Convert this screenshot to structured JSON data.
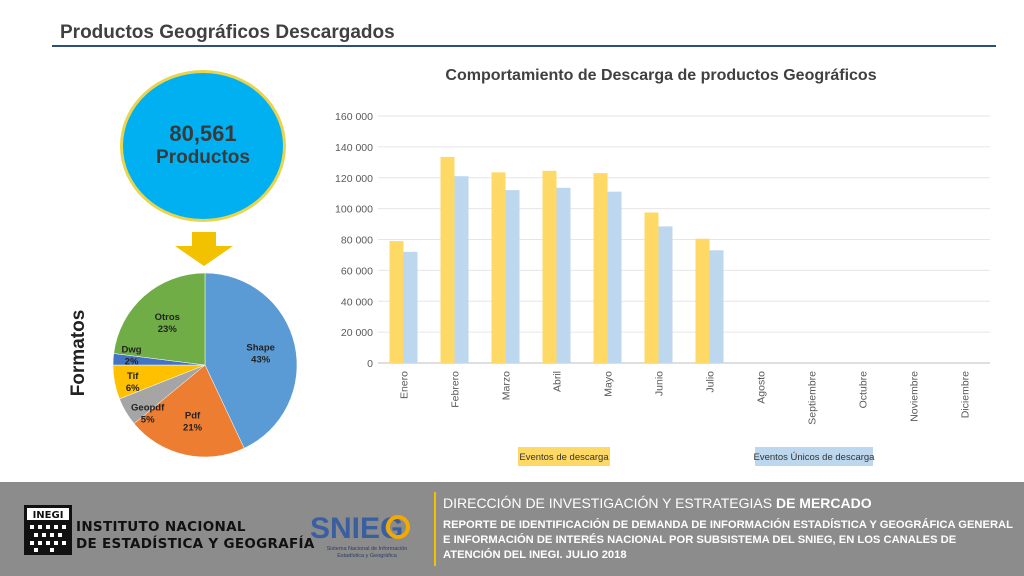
{
  "header": {
    "title": "Productos Geográficos Descargados"
  },
  "summary": {
    "number": "80,561",
    "label": "Productos",
    "side_label": "Formatos"
  },
  "pie": {
    "slices": [
      {
        "name": "Shape",
        "pct_label": "43%",
        "value": 43,
        "color": "#5b9bd5"
      },
      {
        "name": "Pdf",
        "pct_label": "21%",
        "value": 21,
        "color": "#ed7d31"
      },
      {
        "name": "Geopdf",
        "pct_label": "5%",
        "value": 5,
        "color": "#a5a5a5"
      },
      {
        "name": "Tif",
        "pct_label": "6%",
        "value": 6,
        "color": "#ffc000"
      },
      {
        "name": "Dwg",
        "pct_label": "2%",
        "value": 2,
        "color": "#4472c4"
      },
      {
        "name": "Otros",
        "pct_label": "23%",
        "value": 23,
        "color": "#70ad47"
      }
    ]
  },
  "chart_data": {
    "type": "bar",
    "title": "Comportamiento de Descarga de productos Geográficos",
    "categories": [
      "Enero",
      "Febrero",
      "Marzo",
      "Abril",
      "Mayo",
      "Junio",
      "Julio",
      "Agosto",
      "Septiembre",
      "Octubre",
      "Noviembre",
      "Diciembre"
    ],
    "series": [
      {
        "name": "Eventos de descarga",
        "color": "#ffd966",
        "values": [
          79000,
          133500,
          123500,
          124500,
          123000,
          97500,
          80500,
          null,
          null,
          null,
          null,
          null
        ]
      },
      {
        "name": "Eventos Únicos de descarga",
        "color": "#bdd7ee",
        "values": [
          72000,
          121000,
          112000,
          113500,
          111000,
          88500,
          73000,
          null,
          null,
          null,
          null,
          null
        ]
      }
    ],
    "yticks": [
      "0",
      "20 000",
      "40 000",
      "60 000",
      "80 000",
      "100 000",
      "120 000",
      "140 000",
      "160 000"
    ],
    "ylim": [
      0,
      160000
    ],
    "grid": true,
    "legend_position": "bottom"
  },
  "footer": {
    "inegi_logo_text": "INEGI",
    "institute_line1": "INSTITUTO NACIONAL",
    "institute_line2": "DE ESTADÍSTICA Y GEOGRAFÍA",
    "snieg_brand": "SNIEG",
    "snieg_line1": "Sistema Nacional de Información",
    "snieg_line2": "Estadística y Geográfica",
    "heading_normal": "DIRECCIÓN DE INVESTIGACIÓN Y ESTRATEGIAS",
    "heading_bold": "DE MERCADO",
    "report": "REPORTE DE IDENTIFICACIÓN DE DEMANDA DE INFORMACIÓN ESTADÍSTICA Y GEOGRÁFICA GENERAL E INFORMACIÓN DE INTERÉS NACIONAL POR SUBSISTEMA DEL SNIEG, EN LOS CANALES DE ATENCIÓN DEL INEGI. JULIO 2018"
  },
  "colors": {
    "accent_blue": "#00b0f0",
    "gold": "#f2c200",
    "footer_gray": "#8c8c8c",
    "rule": "#2e4f7c"
  }
}
